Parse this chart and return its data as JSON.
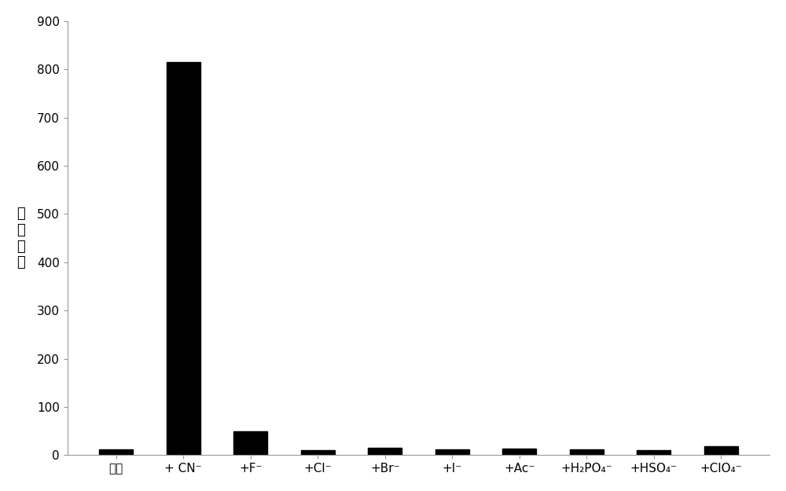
{
  "categories": [
    "主体",
    "+ CN⁻",
    "+F⁻",
    "+Cl⁻",
    "+Br⁻",
    "+I⁻",
    "+Ac⁻",
    "+H₂PO₄⁻",
    "+HSO₄⁻",
    "+ClO₄⁻"
  ],
  "values": [
    12,
    815,
    50,
    10,
    15,
    12,
    13,
    12,
    11,
    18
  ],
  "bar_color": "#000000",
  "ylabel_chars": [
    "荧",
    "光",
    "强",
    "度"
  ],
  "ylim": [
    0,
    900
  ],
  "yticks": [
    0,
    100,
    200,
    300,
    400,
    500,
    600,
    700,
    800,
    900
  ],
  "background_color": "#ffffff",
  "bar_width": 0.5,
  "ylabel_fontsize": 13,
  "tick_fontsize": 11,
  "spine_color": "#999999"
}
